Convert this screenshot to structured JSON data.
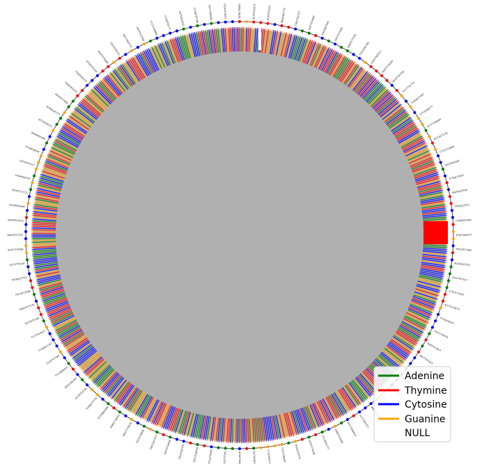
{
  "chart_data": {
    "type": "circular-sequence",
    "title": "",
    "ring_fill_color": "#b2b2b2",
    "inner_fill_color": "#b0b0b0",
    "highlight_color": "#ff0000",
    "series": [
      {
        "name": "Adenine",
        "color": "#008000"
      },
      {
        "name": "Thymine",
        "color": "#ff0000"
      },
      {
        "name": "Cytosine",
        "color": "#0000ff"
      },
      {
        "name": "Guanine",
        "color": "#ffa500"
      },
      {
        "name": "NULL",
        "color": null
      }
    ],
    "legend_position": "lower right",
    "outer_kmer_labels": [
      "TATGCTTGGCC",
      "ACTTGTGGCCT",
      "GCGGTGTCGCC",
      "AACACAGTTTC",
      "GTAGTTGCTCT",
      "TCATTGTAAAT",
      "TTGTAGCTGGC",
      "TATCTCTCAAC",
      "AAGATCTCTAC",
      "TCGCGTACTAA",
      "GCACTTATTCC",
      "GGATTCTGCGG",
      "AGTGTTATTGA",
      "TTCCTTGCTTA",
      "TCAGACCTGAT",
      "CCTCCAAGCTT",
      "GCTTTTGAGGA",
      "ACCCGCTCCGC",
      "CTTCCCCAAGG",
      "CGCCGTGCGAC",
      "TCTGACTCAGT",
      "GAATGCATCAA",
      "TTTGACGTTCC",
      "CTGAGGCCAAG",
      "ACACTAAATCT",
      "TTGCATCCGAA",
      "ACGTAGCTTTG",
      "GCACTATTGCT",
      "CTTGTCTCGAT",
      "ACCTCCCACTG",
      "TTTGGTGCACT",
      "CCCCCTATATA",
      "TGATTCCTACT",
      "GACTTGTCACT",
      "GTCGACCTCAA",
      "ACCGAGCTAAG",
      "CATTTCCCTGG",
      "TTCTGCCGGTC",
      "AACGGGATACT",
      "GCCTTAGCGCC",
      "ATCCTGAAACA",
      "GGAGTTCGGGG",
      "CCCCACGCCTT",
      "GGTATCTACAA",
      "TAGGCATATTC",
      "TTCCTTAACAT",
      "TCTATGACCCG",
      "TGCTACACCCA",
      "ACAACTGGAGA",
      "CCTGTCTTTAC",
      "GTTCGCTAGGA",
      "TGTCTCGATCA",
      "CACGTGGTTAC",
      "TGATGTGAGAA",
      "TAGCCACCTCT",
      "TGCCGTGAGGC",
      "AGCCTTTGATG",
      "GGAGCCTAATG",
      "TCCTGAGCAGA",
      "TCAGGCTTTTG",
      "CCCATCCCCGA",
      "GAGCCAGCAGT",
      "TTCCAAAAGGC",
      "CCCATTCTAAC",
      "TCTAAGCCTGT",
      "TCCTCACAACT",
      "GGCTATTCGAT",
      "AAACATCTCTG",
      "TACCACTCGAA",
      "TATGACCTTCC",
      "CGCTTTTGGAC",
      "GCACTCTGGGA",
      "AAATGCTCCCG",
      "GAATATCACCG",
      "ACGGAGGGAAA",
      "GGCATCCCCTG",
      "CAGAAGGCTAT",
      "CGTGTATTCCT",
      "TCTAACGGCAC",
      "GAGAAGGTAAC",
      "GCCCACACCCT",
      "ACAGGCACCTT",
      "AGTATCCCAAG",
      "TGGGTACCGTG",
      "TCGGTCGCTTT",
      "GTTACCCCCAT",
      "ACGTTCTGGAG",
      "CACGGTAGTCG",
      "AGCCCAGTCTT",
      "GGTTTCCTGGG",
      "TCCCCCGAGGG",
      "CCCAGTGCCTC",
      "CATTAACGCGC",
      "CCTAATGTTAA",
      "GGCCTAAGAAC",
      "GTCATGTAGCT"
    ]
  }
}
